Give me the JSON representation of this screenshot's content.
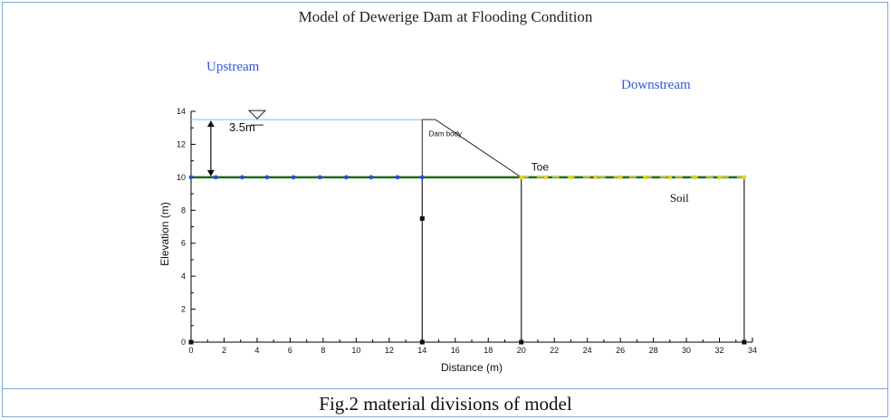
{
  "figure": {
    "title": "Model of Dewerige  Dam at Flooding Condition",
    "upstream_label": "Upstream",
    "downstream_label": "Downstream",
    "caption": "Fig.2 material divisions of model"
  },
  "chart_data": {
    "type": "diagram",
    "xlabel": "Distance (m)",
    "ylabel": "Elevation (m)",
    "xlim": [
      0,
      34
    ],
    "ylim": [
      0,
      14
    ],
    "x_ticks": [
      "0",
      "2",
      "4",
      "6",
      "8",
      "10",
      "12",
      "14",
      "16",
      "18",
      "20",
      "22",
      "24",
      "26",
      "28",
      "30",
      "32",
      "34"
    ],
    "y_ticks": [
      "0",
      "2",
      "4",
      "6",
      "8",
      "10",
      "12",
      "14"
    ],
    "water_level": 13.5,
    "water_extent": [
      0,
      14
    ],
    "ground_level": 10,
    "dam_crest": [
      14,
      14.8
    ],
    "dam_toe": [
      20,
      10
    ],
    "depth_label": "3.5m",
    "dam_label": "Dam body",
    "toe_label": "Toe",
    "soil_label": "Soil",
    "region_boundaries_x": [
      14,
      20,
      33.5
    ],
    "upstream_nodes_x": [
      0,
      1.5,
      3.1,
      4.6,
      6.2,
      7.8,
      9.4,
      10.9,
      12.5,
      14
    ],
    "downstream_nodes_x": [
      20,
      21.5,
      23,
      24.5,
      26,
      27.5,
      29,
      30.5,
      32,
      33.5
    ],
    "square_nodes": [
      [
        0,
        0
      ],
      [
        14,
        0
      ],
      [
        20,
        0
      ],
      [
        33.5,
        0
      ],
      [
        14,
        7.5
      ]
    ],
    "colors": {
      "water": "#66ccee",
      "ground": "#1a6b1a",
      "upstream_nodes": "#2b4fd6",
      "downstream_nodes": "#e6d21e",
      "axis": "#000000",
      "frame": "#7da7d9"
    }
  }
}
